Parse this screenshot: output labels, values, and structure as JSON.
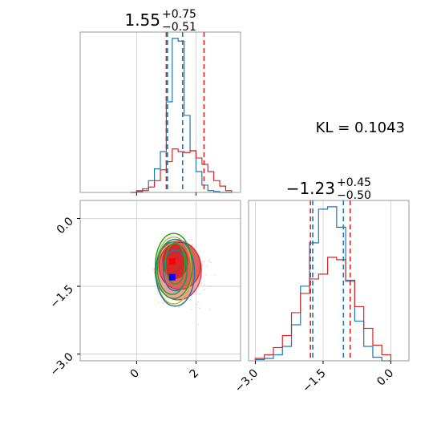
{
  "chart_data": {
    "type": "corner",
    "kl_annotation": "KL = 0.1043",
    "parameters": [
      {
        "median": "1.55",
        "err_plus": "+0.75",
        "err_minus": "−0.51"
      },
      {
        "median": "−1.23",
        "err_plus": "+0.45",
        "err_minus": "−0.50"
      }
    ],
    "axis_ranges": {
      "p1": [
        -1.9,
        3.5
      ],
      "p2": [
        -3.15,
        0.4
      ]
    },
    "grid": true,
    "x_ticks_p1": [
      {
        "value": 0,
        "label": "0"
      },
      {
        "value": 2,
        "label": "2"
      }
    ],
    "y_ticks_p2": [
      {
        "value": 0,
        "label": "0.0"
      },
      {
        "value": -1.5,
        "label": "−1.5"
      },
      {
        "value": -3,
        "label": "−3.0"
      }
    ],
    "x_ticks_p2": [
      {
        "value": -3,
        "label": "−3.0"
      },
      {
        "value": -1.5,
        "label": "−1.5"
      },
      {
        "value": 0,
        "label": "0.0"
      }
    ],
    "colors": {
      "blue": "#1f77b4",
      "red": "#d62728",
      "green": "#2ca02c",
      "olive": "#bcbd22",
      "marker_blue": "#0000ff",
      "marker_red": "#ff0000"
    },
    "hist_p1": {
      "bin_edges": [
        -0.2,
        0.0,
        0.2,
        0.4,
        0.6,
        0.8,
        1.0,
        1.2,
        1.4,
        1.6,
        1.8,
        2.0,
        2.2,
        2.4,
        2.6,
        2.8,
        3.0,
        3.2
      ],
      "series": [
        {
          "color": "blue",
          "counts": [
            0,
            2,
            4,
            13,
            26,
            45,
            100,
            170,
            167,
            85,
            46,
            23,
            8,
            2,
            1,
            0,
            0
          ]
        },
        {
          "color": "red",
          "counts": [
            0,
            1,
            2,
            6,
            13,
            25,
            34,
            48,
            45,
            44,
            46,
            38,
            31,
            23,
            13,
            7,
            2
          ]
        }
      ],
      "quantile_lines": [
        {
          "color": "red",
          "values": [
            1.0,
            2.27
          ]
        },
        {
          "color": "blue",
          "values": [
            1.04,
            1.55
          ]
        }
      ]
    },
    "hist_p2": {
      "bin_edges": [
        -3.0,
        -2.8,
        -2.6,
        -2.4,
        -2.2,
        -2.0,
        -1.8,
        -1.6,
        -1.4,
        -1.2,
        -1.0,
        -0.8,
        -0.6,
        -0.4,
        -0.2,
        0.0
      ],
      "series": [
        {
          "color": "blue",
          "counts": [
            1,
            2,
            5,
            12,
            30,
            62,
            98,
            126,
            128,
            111,
            66,
            33,
            12,
            3,
            0
          ]
        },
        {
          "color": "red",
          "counts": [
            2,
            5,
            11,
            21,
            40,
            56,
            68,
            72,
            86,
            84,
            67,
            45,
            27,
            13,
            5
          ]
        }
      ],
      "quantile_lines": [
        {
          "color": "red",
          "values": [
            -1.78,
            -0.9
          ]
        },
        {
          "color": "blue",
          "values": [
            -1.73,
            -1.05
          ]
        }
      ]
    },
    "joint": {
      "red_filled_levels": [
        {
          "center": [
            1.4,
            -1.15
          ],
          "radius": [
            0.78,
            0.65
          ],
          "fill": "#f2a0a0"
        },
        {
          "center": [
            1.45,
            -1.05
          ],
          "radius": [
            0.7,
            0.52
          ],
          "fill": "#e06060"
        },
        {
          "center": [
            1.3,
            -0.95
          ],
          "radius": [
            0.42,
            0.38
          ],
          "fill": "#d62728"
        }
      ],
      "blue_contours": [
        {
          "center": [
            1.3,
            -1.2
          ],
          "radius": [
            0.65,
            0.74
          ]
        },
        {
          "center": [
            1.3,
            -1.15
          ],
          "radius": [
            0.4,
            0.45
          ]
        }
      ],
      "green_contours": [
        {
          "center": [
            1.25,
            -1.05
          ],
          "radius": [
            0.62,
            0.72
          ]
        },
        {
          "center": [
            1.2,
            -1.1
          ],
          "radius": [
            0.5,
            0.58
          ]
        },
        {
          "center": [
            1.3,
            -1.0
          ],
          "radius": [
            0.33,
            0.45
          ]
        }
      ],
      "olive_contours": [
        {
          "center": [
            1.25,
            -1.15
          ],
          "radius": [
            0.6,
            0.74
          ]
        }
      ],
      "markers": [
        {
          "color": "marker_blue",
          "x": 1.2,
          "y": -1.3
        },
        {
          "color": "marker_red",
          "x": 1.2,
          "y": -0.95
        }
      ]
    }
  }
}
